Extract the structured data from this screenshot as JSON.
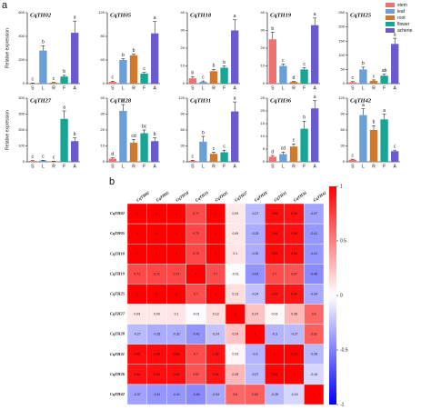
{
  "panel_labels": [
    "a",
    "b"
  ],
  "legend": {
    "names": [
      "stem",
      "leaf",
      "root",
      "flower",
      "achene"
    ],
    "colors": [
      "#f07070",
      "#6a9fd8",
      "#d2782c",
      "#17a596",
      "#6a5acd"
    ]
  },
  "chart_data": [
    {
      "type": "bar",
      "title": "CqTH02",
      "ylabel": "Relative expression",
      "categories": [
        "S",
        "L",
        "R",
        "F",
        "A"
      ],
      "values": [
        3,
        280,
        8,
        60,
        430
      ],
      "errors": [
        2,
        40,
        3,
        10,
        100
      ],
      "letters": [
        "c",
        "b",
        "c",
        "b",
        "a"
      ],
      "ylim": [
        0,
        600
      ],
      "yticks": [
        0,
        200,
        400,
        600
      ]
    },
    {
      "type": "bar",
      "title": "CqTH05",
      "categories": [
        "S",
        "L",
        "R",
        "F",
        "A"
      ],
      "values": [
        3,
        40,
        48,
        17,
        85
      ],
      "errors": [
        1,
        2,
        2,
        2,
        20
      ],
      "letters": [
        "c",
        "b",
        "b",
        "c",
        "a"
      ],
      "ylim": [
        0,
        120
      ],
      "yticks": [
        0,
        40,
        80,
        120
      ]
    },
    {
      "type": "bar",
      "title": "CqTH18",
      "categories": [
        "S",
        "L",
        "R",
        "F",
        "A"
      ],
      "values": [
        3,
        1,
        7,
        9,
        30
      ],
      "errors": [
        1,
        0.5,
        1,
        1,
        6
      ],
      "letters": [
        "b",
        "c",
        "b",
        "b",
        "a"
      ],
      "ylim": [
        0,
        40
      ],
      "yticks": [
        0,
        10,
        20,
        30,
        40
      ]
    },
    {
      "type": "bar",
      "title": "CqTH19",
      "categories": [
        "S",
        "L",
        "R",
        "F",
        "A"
      ],
      "values": [
        25,
        10,
        1,
        8,
        33
      ],
      "errors": [
        4,
        1,
        0.3,
        1,
        4
      ],
      "letters": [
        "b",
        "c",
        "d",
        "c",
        "a"
      ],
      "ylim": [
        0,
        40
      ],
      "yticks": [
        0,
        10,
        20,
        30,
        40
      ]
    },
    {
      "type": "bar",
      "title": "CqTH25",
      "categories": [
        "S",
        "L",
        "R",
        "F",
        "A"
      ],
      "values": [
        5,
        50,
        10,
        28,
        140
      ],
      "errors": [
        2,
        8,
        3,
        5,
        20
      ],
      "letters": [
        "c",
        "b",
        "c",
        "ab",
        "a"
      ],
      "ylim": [
        0,
        250
      ],
      "yticks": [
        0,
        50,
        100,
        150,
        200,
        250
      ]
    },
    {
      "type": "bar",
      "title": "CqTH27",
      "ylabel": "Relative expression",
      "categories": [
        "S",
        "L",
        "R",
        "F",
        "A"
      ],
      "values": [
        5,
        8,
        3,
        270,
        130
      ],
      "errors": [
        2,
        2,
        1,
        50,
        20
      ],
      "letters": [
        "c",
        "c",
        "c",
        "a",
        "b"
      ],
      "ylim": [
        0,
        400
      ],
      "yticks": [
        0,
        100,
        200,
        300,
        400
      ]
    },
    {
      "type": "bar",
      "title": "CqTH28",
      "categories": [
        "S",
        "L",
        "R",
        "F",
        "A"
      ],
      "values": [
        2,
        32,
        12,
        18,
        13
      ],
      "errors": [
        0.5,
        4,
        2,
        2,
        2
      ],
      "letters": [
        "d",
        "a",
        "cd",
        "bc",
        "b"
      ],
      "ylim": [
        0,
        40
      ],
      "yticks": [
        0,
        10,
        20,
        30,
        40
      ]
    },
    {
      "type": "bar",
      "title": "CqTH31",
      "categories": [
        "S",
        "L",
        "R",
        "F",
        "A"
      ],
      "values": [
        2,
        38,
        15,
        18,
        95
      ],
      "errors": [
        1,
        10,
        3,
        4,
        18
      ],
      "letters": [
        "c",
        "b",
        "c",
        "c",
        "a"
      ],
      "ylim": [
        0,
        120
      ],
      "yticks": [
        0,
        30,
        60,
        90,
        120
      ]
    },
    {
      "type": "bar",
      "title": "CqTH36",
      "categories": [
        "S",
        "L",
        "R",
        "F",
        "A"
      ],
      "values": [
        2,
        3,
        6,
        13,
        21
      ],
      "errors": [
        0.5,
        0.8,
        1,
        3,
        3
      ],
      "letters": [
        "d",
        "cd",
        "c",
        "b",
        "a"
      ],
      "ylim": [
        0,
        25
      ],
      "yticks": [
        0,
        5,
        10,
        15,
        20,
        25
      ]
    },
    {
      "type": "bar",
      "title": "CqTH42",
      "categories": [
        "S",
        "L",
        "R",
        "F",
        "A"
      ],
      "values": [
        4,
        88,
        60,
        80,
        20
      ],
      "errors": [
        1,
        12,
        8,
        10,
        2
      ],
      "letters": [
        "c",
        "a",
        "b",
        "a",
        "c"
      ],
      "ylim": [
        0,
        120
      ],
      "yticks": [
        0,
        30,
        60,
        90,
        120
      ]
    },
    {
      "type": "heatmap",
      "labels": [
        "CqTH02",
        "CqTH05",
        "CqTH18",
        "CqTH19",
        "CqTH25",
        "CqTH27",
        "CqTH28",
        "CqTH31",
        "CqTH36",
        "CqTH42"
      ],
      "values": [
        [
          1,
          1,
          1,
          0.71,
          1,
          0.09,
          -0.27,
          0.95,
          0.93,
          -0.37
        ],
        [
          1,
          1,
          1,
          0.72,
          1,
          0.09,
          -0.33,
          0.96,
          0.94,
          -0.41
        ],
        [
          1,
          1,
          1,
          0.72,
          1,
          0.1,
          -0.32,
          0.96,
          0.94,
          -0.41
        ],
        [
          0.71,
          0.72,
          0.72,
          1,
          0.7,
          -0.01,
          -0.42,
          0.7,
          0.67,
          -0.46
        ],
        [
          1,
          1,
          1,
          0.7,
          1,
          0.13,
          -0.24,
          0.93,
          0.92,
          -0.34
        ],
        [
          0.09,
          0.09,
          0.1,
          -0.01,
          0.13,
          1,
          0.24,
          0.03,
          0.28,
          0.6
        ],
        [
          -0.27,
          -0.33,
          -0.32,
          -0.42,
          -0.24,
          0.24,
          1,
          -0.3,
          -0.27,
          0.63
        ],
        [
          0.95,
          0.96,
          0.96,
          0.7,
          0.93,
          0.03,
          -0.3,
          1,
          0.99,
          -0.28
        ],
        [
          0.93,
          0.94,
          0.94,
          0.67,
          0.92,
          0.28,
          -0.27,
          0.99,
          1,
          -0.16
        ],
        [
          -0.37,
          -0.41,
          -0.41,
          -0.46,
          -0.34,
          0.6,
          0.63,
          -0.28,
          -0.16,
          1
        ]
      ],
      "zlim": [
        -1,
        1
      ],
      "zticks": [
        1,
        0.5,
        0,
        -0.5,
        -1
      ],
      "colors": [
        "#0000ff",
        "#ffffff",
        "#ff0000"
      ]
    }
  ]
}
